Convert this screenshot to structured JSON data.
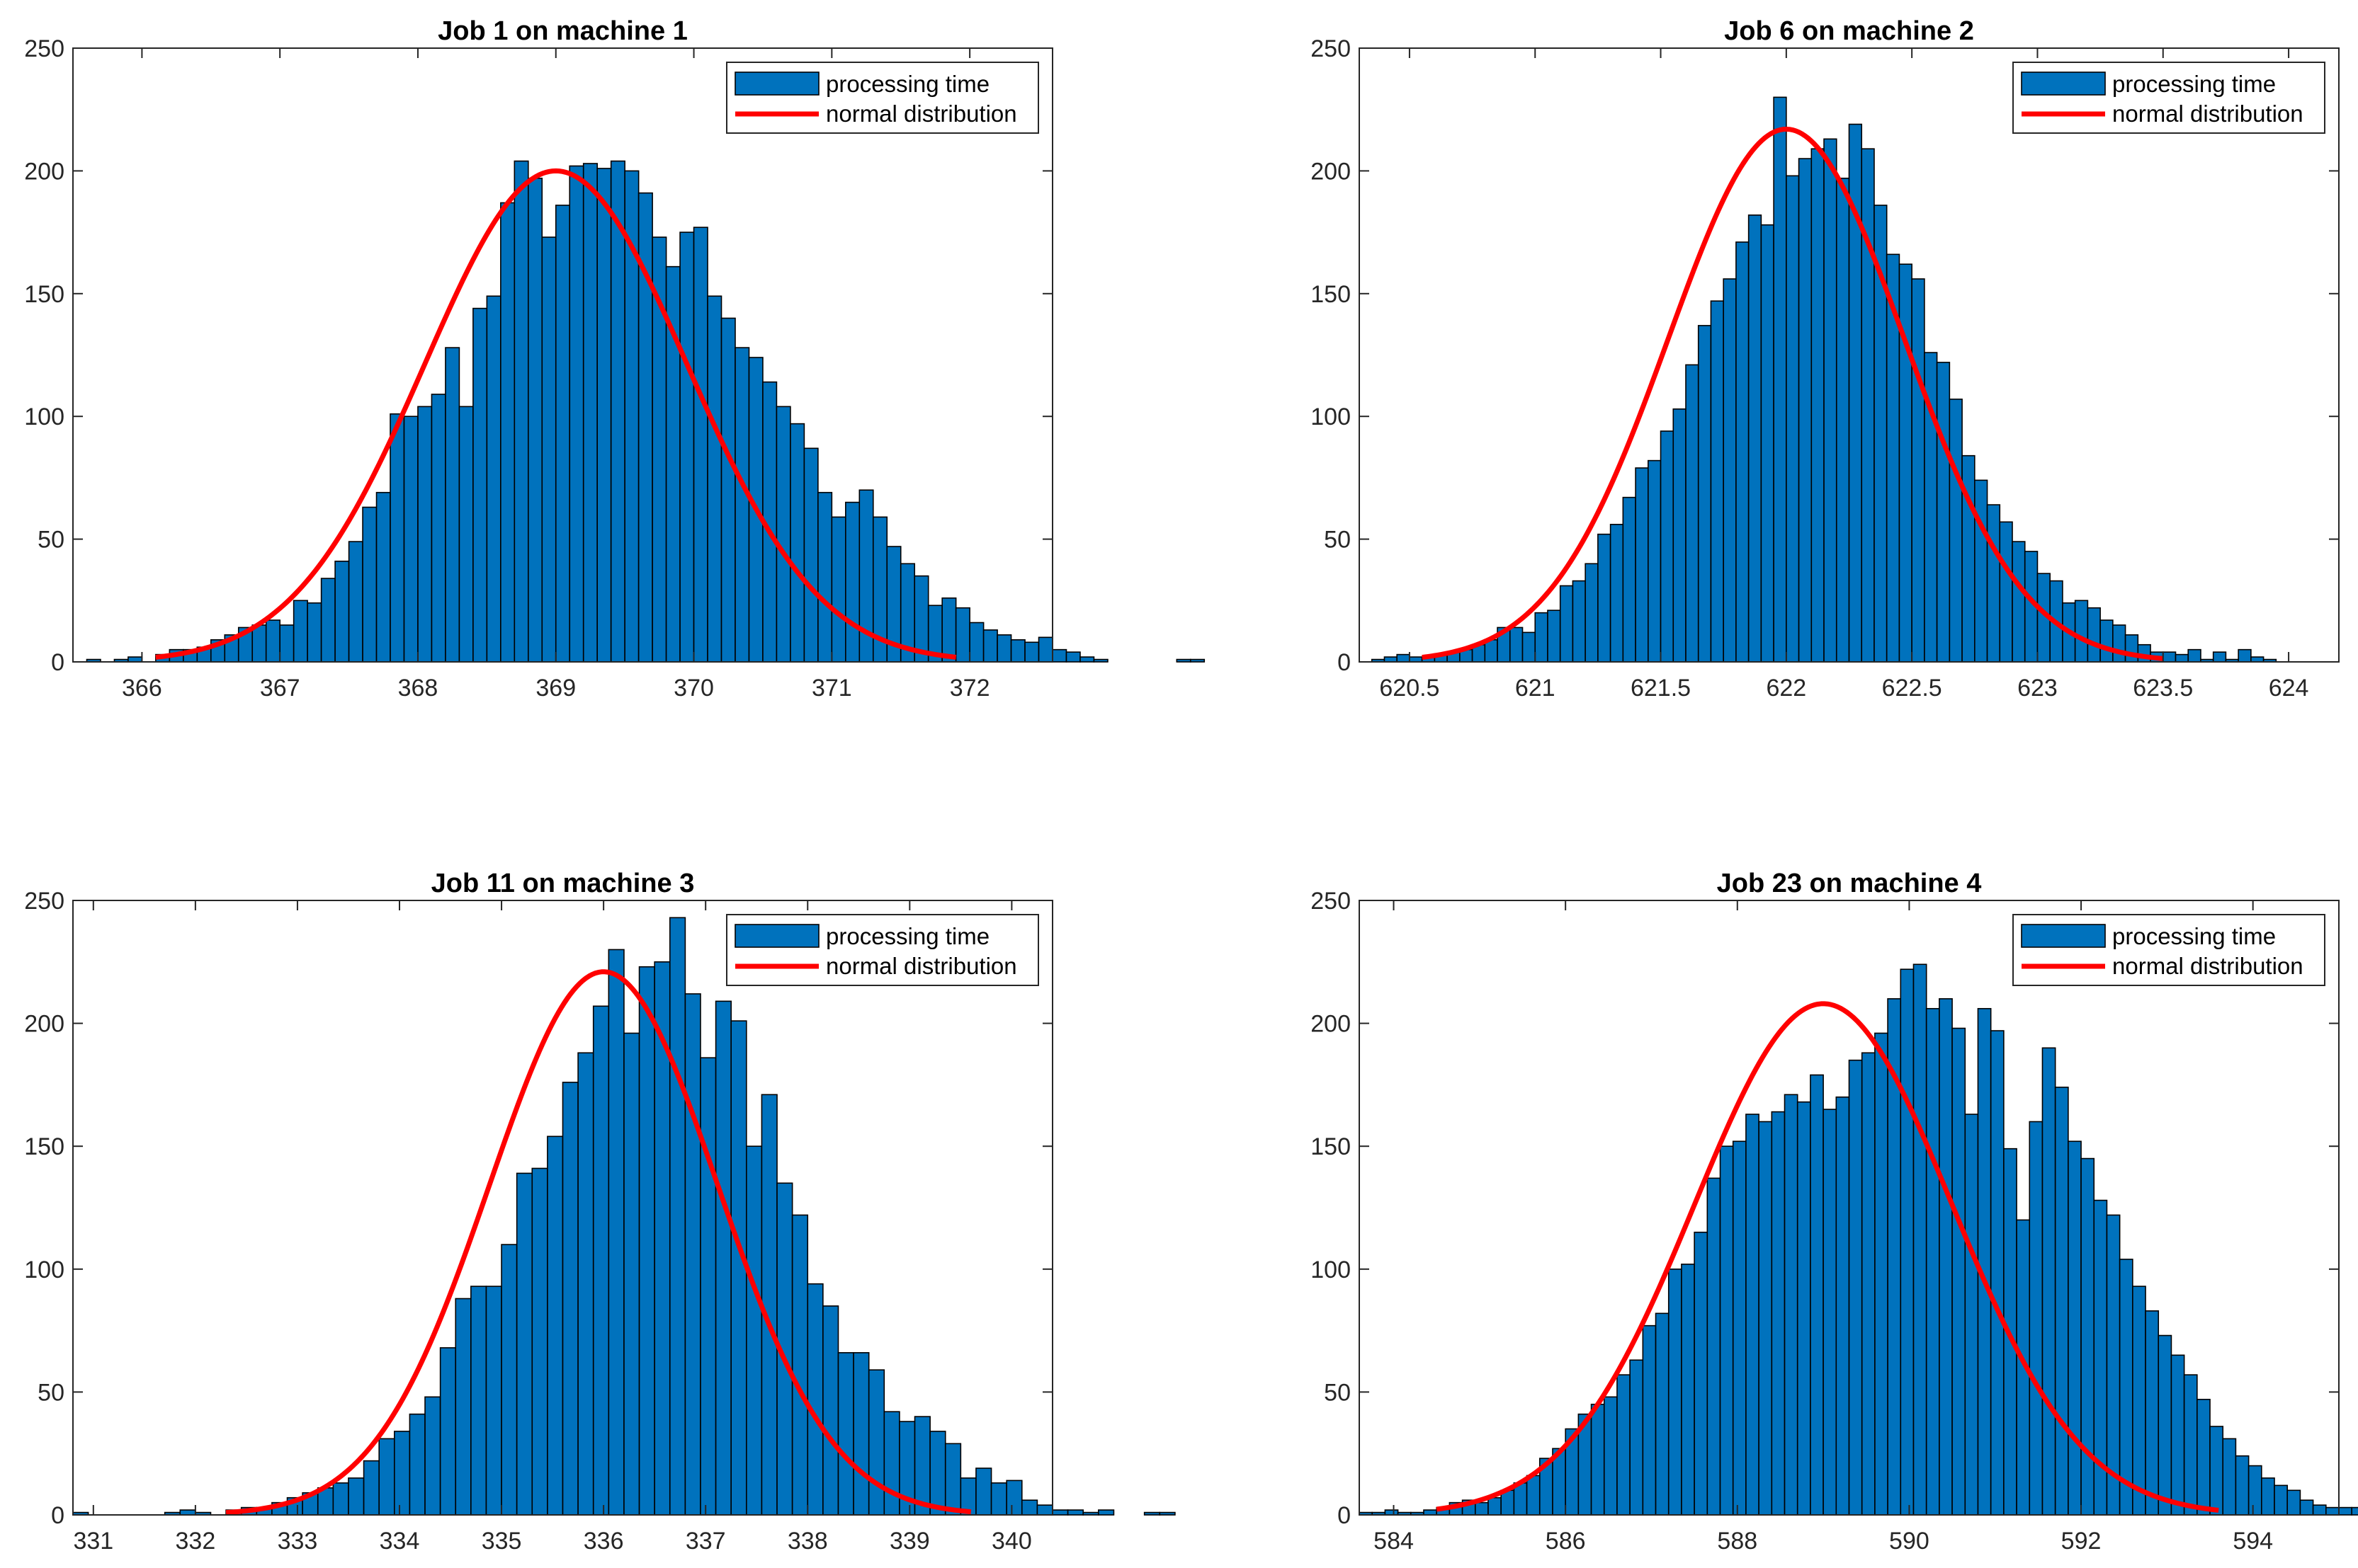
{
  "colors": {
    "bar_fill": "#0072BD",
    "bar_edge": "#000000",
    "fit_line": "#FF0000",
    "axis": "#262626"
  },
  "legend": {
    "hist_label": "processing time",
    "fit_label": "normal distribution",
    "placement": "top-right"
  },
  "chart_data": [
    {
      "type": "bar",
      "title": "Job 1 on machine 1",
      "xlim": [
        365.5,
        372.6
      ],
      "ylim": [
        0,
        250
      ],
      "xticks": [
        366,
        367,
        368,
        369,
        370,
        371,
        372
      ],
      "yticks": [
        0,
        50,
        100,
        150,
        200,
        250
      ],
      "grid": false,
      "series": [
        {
          "name": "processing time",
          "bin_start": 365.6,
          "bin_width": 0.1,
          "values": [
            1,
            0,
            1,
            2,
            0,
            3,
            5,
            5,
            6,
            9,
            11,
            14,
            15,
            17,
            15,
            25,
            24,
            34,
            41,
            49,
            63,
            69,
            101,
            100,
            104,
            109,
            128,
            104,
            144,
            149,
            187,
            204,
            197,
            173,
            186,
            202,
            203,
            201,
            204,
            200,
            191,
            173,
            161,
            175,
            177,
            149,
            140,
            128,
            124,
            114,
            104,
            97,
            87,
            69,
            59,
            65,
            70,
            59,
            47,
            40,
            35,
            23,
            26,
            22,
            16,
            13,
            11,
            9,
            8,
            10,
            5,
            4,
            2,
            1,
            0,
            0,
            0,
            0,
            0,
            1,
            1
          ]
        },
        {
          "name": "normal distribution",
          "type": "line",
          "mu": 369.0,
          "peak": 200,
          "sigma": 0.95,
          "x_range": [
            366.1,
            371.9
          ]
        }
      ]
    },
    {
      "type": "bar",
      "title": "Job 6 on machine 2",
      "xlim": [
        620.3,
        624.2
      ],
      "ylim": [
        0,
        250
      ],
      "xticks": [
        620.5,
        621,
        621.5,
        622,
        622.5,
        623,
        623.5,
        624
      ],
      "yticks": [
        0,
        50,
        100,
        150,
        200,
        250
      ],
      "grid": false,
      "series": [
        {
          "name": "processing time",
          "bin_start": 620.35,
          "bin_width": 0.05,
          "values": [
            1,
            2,
            3,
            2,
            2,
            3,
            4,
            5,
            7,
            9,
            14,
            14,
            12,
            20,
            21,
            31,
            33,
            40,
            52,
            56,
            67,
            79,
            82,
            94,
            103,
            121,
            137,
            147,
            156,
            171,
            182,
            178,
            230,
            198,
            205,
            209,
            213,
            197,
            219,
            209,
            186,
            166,
            162,
            156,
            126,
            122,
            107,
            84,
            74,
            64,
            57,
            49,
            45,
            36,
            33,
            24,
            25,
            22,
            17,
            15,
            11,
            7,
            4,
            4,
            3,
            5,
            1,
            4,
            1,
            5,
            2,
            1,
            0,
            0,
            0,
            0,
            0,
            0,
            0,
            0,
            0,
            0,
            1
          ]
        },
        {
          "name": "normal distribution",
          "type": "line",
          "mu": 622.0,
          "peak": 217,
          "sigma": 0.47,
          "x_range": [
            620.55,
            623.5
          ]
        }
      ]
    },
    {
      "type": "bar",
      "title": "Job 11 on machine 3",
      "xlim": [
        330.8,
        340.4
      ],
      "ylim": [
        0,
        250
      ],
      "xticks": [
        331,
        332,
        333,
        334,
        335,
        336,
        337,
        338,
        339,
        340
      ],
      "yticks": [
        0,
        50,
        100,
        150,
        200,
        250
      ],
      "grid": false,
      "series": [
        {
          "name": "processing time",
          "bin_start": 330.8,
          "bin_width": 0.15,
          "values": [
            1,
            0,
            0,
            0,
            0,
            0,
            1,
            2,
            1,
            0,
            2,
            3,
            3,
            5,
            7,
            9,
            11,
            13,
            15,
            22,
            31,
            34,
            41,
            48,
            68,
            88,
            93,
            93,
            110,
            139,
            141,
            154,
            176,
            188,
            207,
            230,
            196,
            223,
            225,
            243,
            212,
            186,
            209,
            201,
            150,
            171,
            135,
            122,
            94,
            85,
            66,
            66,
            59,
            42,
            38,
            40,
            34,
            29,
            15,
            19,
            13,
            14,
            6,
            4,
            2,
            2,
            1,
            2,
            0,
            0,
            1,
            1,
            0
          ]
        },
        {
          "name": "normal distribution",
          "type": "line",
          "mu": 336.0,
          "peak": 221,
          "sigma": 1.12,
          "x_range": [
            332.3,
            339.6
          ]
        }
      ]
    },
    {
      "type": "bar",
      "title": "Job 23 on machine 4",
      "xlim": [
        583.6,
        595.0
      ],
      "ylim": [
        0,
        250
      ],
      "xticks": [
        584,
        586,
        588,
        590,
        592,
        594
      ],
      "yticks": [
        0,
        50,
        100,
        150,
        200,
        250
      ],
      "grid": false,
      "series": [
        {
          "name": "processing time",
          "bin_start": 583.6,
          "bin_width": 0.15,
          "values": [
            1,
            1,
            2,
            1,
            1,
            2,
            3,
            5,
            6,
            5,
            7,
            10,
            13,
            16,
            23,
            27,
            35,
            41,
            45,
            48,
            57,
            63,
            77,
            82,
            100,
            102,
            115,
            137,
            150,
            152,
            163,
            160,
            164,
            171,
            168,
            179,
            165,
            170,
            185,
            188,
            196,
            210,
            222,
            224,
            206,
            210,
            198,
            163,
            206,
            197,
            149,
            120,
            160,
            190,
            174,
            152,
            145,
            128,
            122,
            104,
            93,
            83,
            73,
            65,
            57,
            47,
            36,
            31,
            24,
            20,
            15,
            12,
            10,
            6,
            4,
            3,
            3,
            3,
            2,
            1,
            0,
            0,
            0,
            1,
            2,
            1,
            1,
            0,
            0,
            0,
            0,
            0
          ]
        },
        {
          "name": "normal distribution",
          "type": "line",
          "mu": 589.0,
          "peak": 208,
          "sigma": 1.5,
          "x_range": [
            584.5,
            593.6
          ]
        }
      ]
    }
  ]
}
